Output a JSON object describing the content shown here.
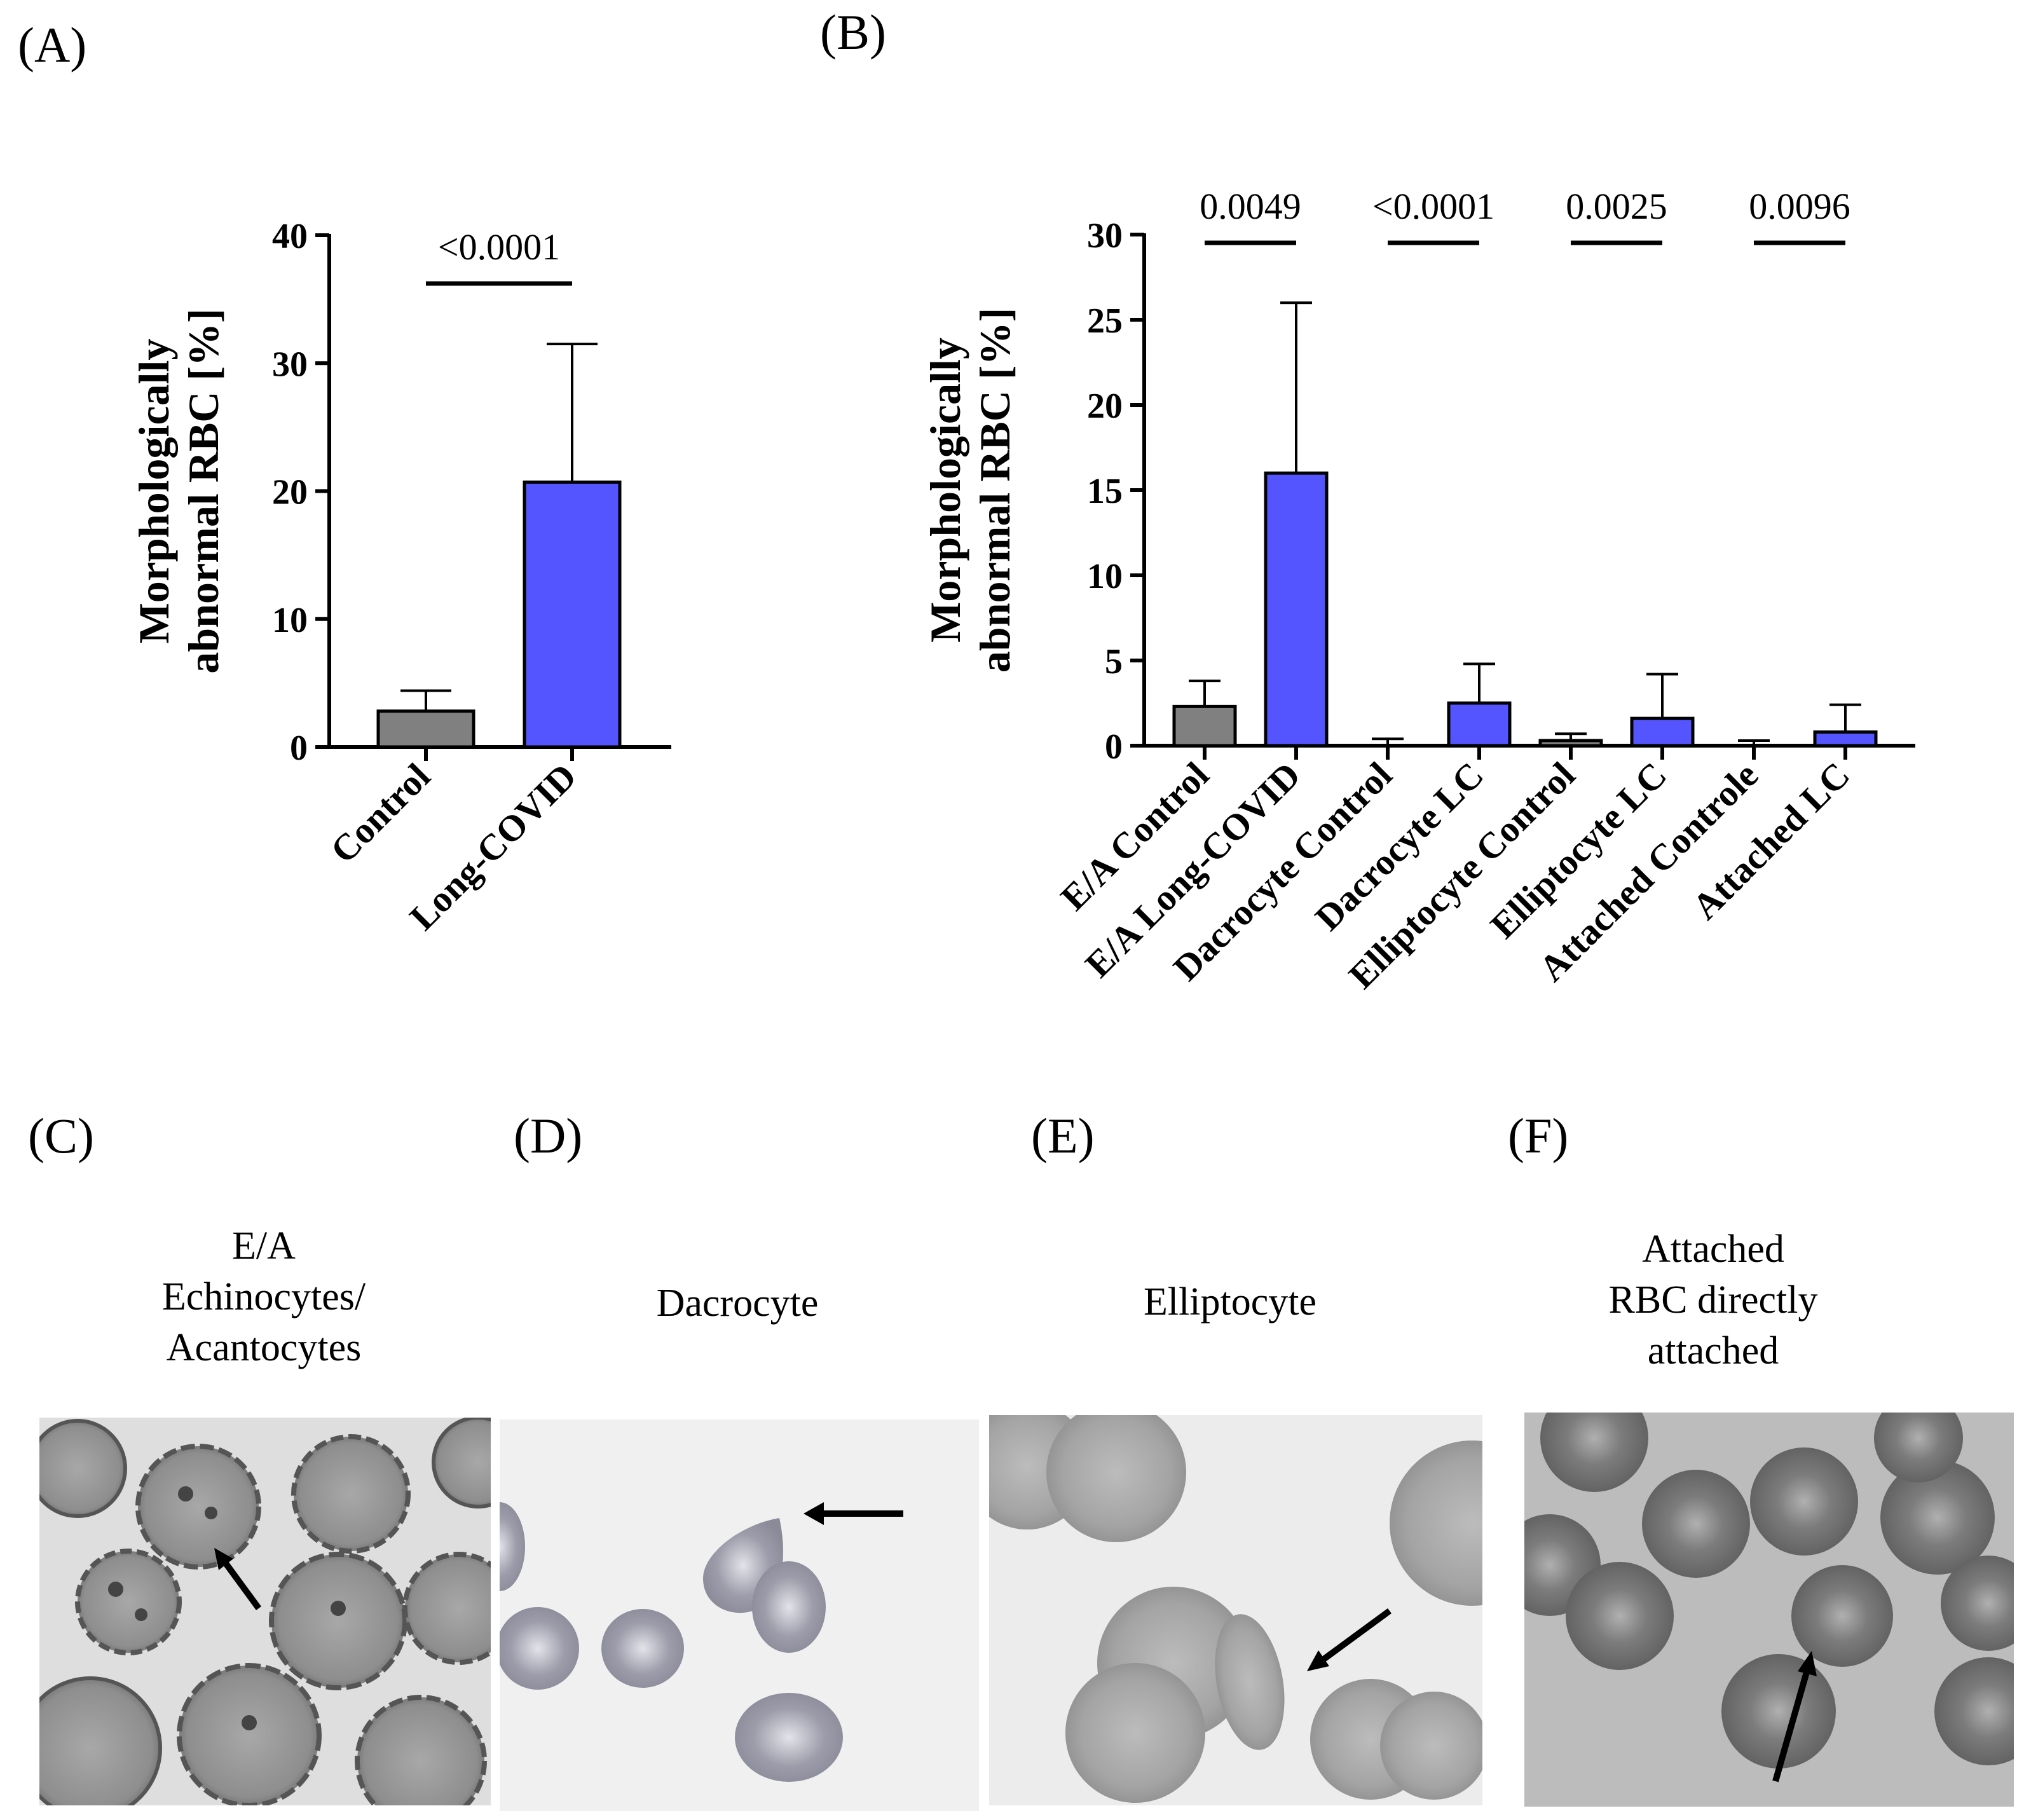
{
  "panels": {
    "a": "(A)",
    "b": "(B)",
    "c": "(C)",
    "d": "(D)",
    "e": "(E)",
    "f": "(F)"
  },
  "colors": {
    "control": "#808080",
    "long_covid": "#5555ff"
  },
  "chart_data": [
    {
      "type": "bar",
      "id": "A",
      "ylabel": [
        "Morphologically",
        "abnormal RBC [%]"
      ],
      "ylim": [
        0,
        40
      ],
      "yticks": [
        0,
        10,
        20,
        30,
        40
      ],
      "categories": [
        "Control",
        "Long-COVID"
      ],
      "values": [
        2.8,
        20.7
      ],
      "errors": [
        1.6,
        10.8
      ],
      "groups": [
        "control",
        "long_covid"
      ],
      "comparisons": [
        {
          "from": 0,
          "to": 1,
          "label": "<0.0001"
        }
      ]
    },
    {
      "type": "bar",
      "id": "B",
      "ylabel": [
        "Morphologically",
        "abnormal RBC [%]"
      ],
      "ylim": [
        0,
        30
      ],
      "yticks": [
        0,
        5,
        10,
        15,
        20,
        25,
        30
      ],
      "categories": [
        "E/A Control",
        "E/A Long-COVID",
        "Dacrocyte Control",
        "Dacrocyte LC",
        "Elliptocyte Control",
        "Elliptocyte LC",
        "Attached Controle",
        "Attached LC"
      ],
      "values": [
        2.3,
        16.0,
        0.0,
        2.5,
        0.3,
        1.6,
        0.0,
        0.8
      ],
      "errors": [
        1.5,
        10.0,
        0.4,
        2.3,
        0.4,
        2.6,
        0.3,
        1.6
      ],
      "groups": [
        "control",
        "long_covid",
        "control",
        "long_covid",
        "control",
        "long_covid",
        "control",
        "long_covid"
      ],
      "comparisons": [
        {
          "from": 0,
          "to": 1,
          "label": "0.0049"
        },
        {
          "from": 2,
          "to": 3,
          "label": "<0.0001"
        },
        {
          "from": 4,
          "to": 5,
          "label": "0.0025"
        },
        {
          "from": 6,
          "to": 7,
          "label": "0.0096"
        }
      ]
    }
  ],
  "micrographs": [
    {
      "key": "c",
      "caption": [
        "E/A",
        "Echinocytes/",
        "Acantocytes"
      ],
      "arrow_icon": "arrow-icon"
    },
    {
      "key": "d",
      "caption": [
        "Dacrocyte"
      ],
      "arrow_icon": "arrow-icon"
    },
    {
      "key": "e",
      "caption": [
        "Elliptocyte"
      ],
      "arrow_icon": "arrow-icon"
    },
    {
      "key": "f",
      "caption": [
        "Attached",
        "RBC directly",
        "attached"
      ],
      "arrow_icon": "arrow-icon"
    }
  ]
}
